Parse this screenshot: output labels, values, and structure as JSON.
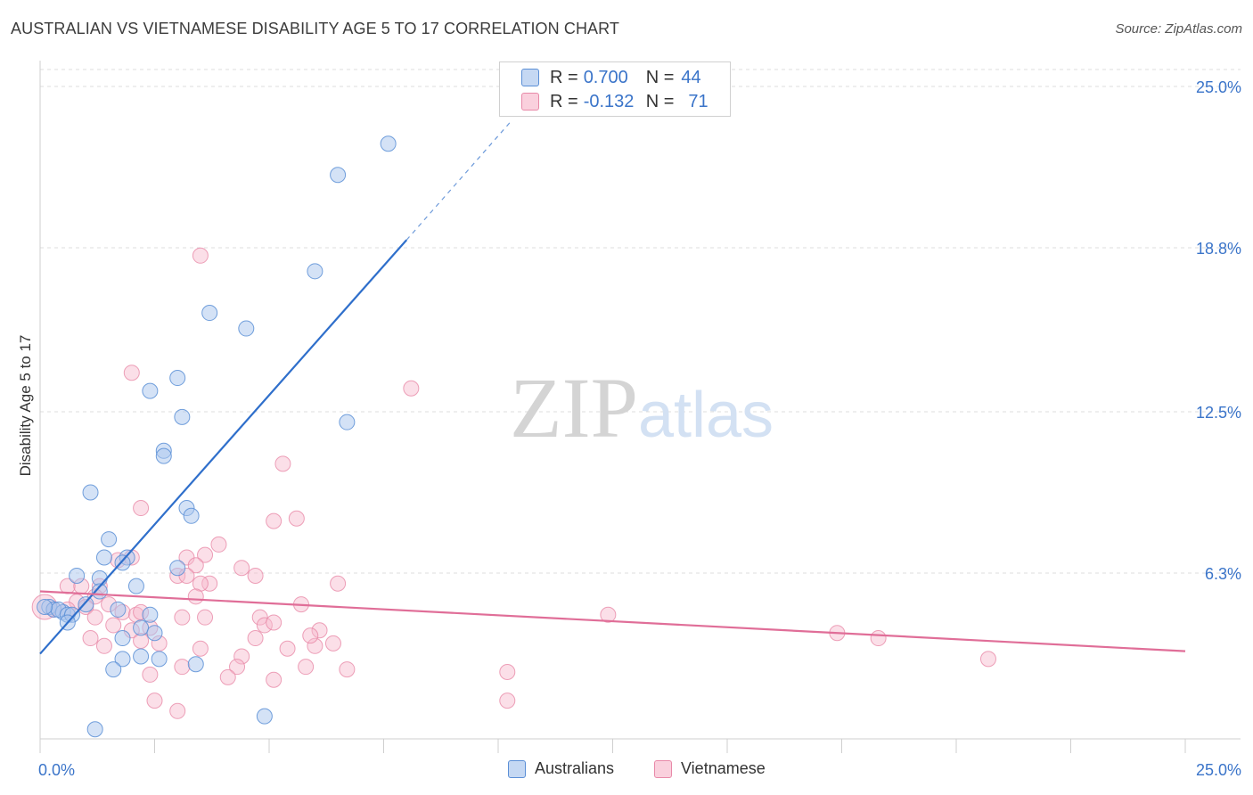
{
  "header": {
    "title": "AUSTRALIAN VS VIETNAMESE DISABILITY AGE 5 TO 17 CORRELATION CHART",
    "source": "Source: ZipAtlas.com"
  },
  "legend": {
    "rows": [
      {
        "r_label": "R =",
        "r_value": "0.700",
        "n_label": "N =",
        "n_value": "44"
      },
      {
        "r_label": "R =",
        "r_value": "-0.132",
        "n_label": "N =",
        "n_value": "71"
      }
    ]
  },
  "bottom_legend": [
    "Australians",
    "Vietnamese"
  ],
  "colors": {
    "australians_fill": "#a9c6ee",
    "australians_stroke": "#5b8fd6",
    "australians_line": "#2f6fcb",
    "vietnamese_fill": "#f6b9cc",
    "vietnamese_stroke": "#e889a8",
    "vietnamese_line": "#e06e98",
    "tick_label": "#3a74c9",
    "grid": "#dcdcdc"
  },
  "chart_data": {
    "type": "scatter",
    "title": "AUSTRALIAN VS VIETNAMESE DISABILITY AGE 5 TO 17 CORRELATION CHART",
    "xlabel": "",
    "ylabel": "Disability Age 5 to 17",
    "xlim": [
      0,
      25
    ],
    "ylim": [
      0,
      25
    ],
    "x_tick_labels": [
      "0.0%",
      "25.0%"
    ],
    "y_ticks": [
      6.3,
      12.5,
      18.8,
      25.0
    ],
    "y_tick_labels": [
      "6.3%",
      "12.5%",
      "18.8%",
      "25.0%"
    ],
    "watermark": "ZIPatlas",
    "series": [
      {
        "name": "Australians",
        "r": 0.7,
        "n": 44,
        "trend": {
          "x0": 0,
          "y0": 3.2,
          "x1": 8.0,
          "y1": 19.1,
          "dash_to_x": 10.3,
          "dash_to_y": 23.7
        },
        "points": [
          [
            7.6,
            22.8
          ],
          [
            6.5,
            21.6
          ],
          [
            6.0,
            17.9
          ],
          [
            3.7,
            16.3
          ],
          [
            4.5,
            15.7
          ],
          [
            3.0,
            13.8
          ],
          [
            2.4,
            13.3
          ],
          [
            3.1,
            12.3
          ],
          [
            6.7,
            12.1
          ],
          [
            2.7,
            11.0
          ],
          [
            2.7,
            10.8
          ],
          [
            1.1,
            9.4
          ],
          [
            3.2,
            8.8
          ],
          [
            3.3,
            8.5
          ],
          [
            1.5,
            7.6
          ],
          [
            1.4,
            6.9
          ],
          [
            1.9,
            6.9
          ],
          [
            1.8,
            6.7
          ],
          [
            3.0,
            6.5
          ],
          [
            0.8,
            6.2
          ],
          [
            1.3,
            6.1
          ],
          [
            2.1,
            5.8
          ],
          [
            1.3,
            5.6
          ],
          [
            1.0,
            5.1
          ],
          [
            0.2,
            5.0
          ],
          [
            0.3,
            4.9
          ],
          [
            0.5,
            4.8
          ],
          [
            0.4,
            4.9
          ],
          [
            0.6,
            4.7
          ],
          [
            0.1,
            5.0
          ],
          [
            1.7,
            4.9
          ],
          [
            2.4,
            4.7
          ],
          [
            0.7,
            4.7
          ],
          [
            0.6,
            4.4
          ],
          [
            2.2,
            4.2
          ],
          [
            2.5,
            4.0
          ],
          [
            1.8,
            3.8
          ],
          [
            2.2,
            3.1
          ],
          [
            2.6,
            3.0
          ],
          [
            1.8,
            3.0
          ],
          [
            3.4,
            2.8
          ],
          [
            1.6,
            2.6
          ],
          [
            4.9,
            0.8
          ],
          [
            1.2,
            0.3
          ]
        ]
      },
      {
        "name": "Vietnamese",
        "r": -0.132,
        "n": 71,
        "trend": {
          "x0": 0,
          "y0": 5.6,
          "x1": 25,
          "y1": 3.3
        },
        "points": [
          [
            3.5,
            18.5
          ],
          [
            2.0,
            14.0
          ],
          [
            8.1,
            13.4
          ],
          [
            5.3,
            10.5
          ],
          [
            2.2,
            8.8
          ],
          [
            5.1,
            8.3
          ],
          [
            5.6,
            8.4
          ],
          [
            3.9,
            7.4
          ],
          [
            3.6,
            7.0
          ],
          [
            4.4,
            6.5
          ],
          [
            3.2,
            6.9
          ],
          [
            3.4,
            6.6
          ],
          [
            1.7,
            6.8
          ],
          [
            2.0,
            6.9
          ],
          [
            3.0,
            6.2
          ],
          [
            3.2,
            6.2
          ],
          [
            3.7,
            5.9
          ],
          [
            4.7,
            6.2
          ],
          [
            1.3,
            5.8
          ],
          [
            3.5,
            5.9
          ],
          [
            6.5,
            5.9
          ],
          [
            0.6,
            5.8
          ],
          [
            0.9,
            5.8
          ],
          [
            1.2,
            5.4
          ],
          [
            3.4,
            5.4
          ],
          [
            5.7,
            5.1
          ],
          [
            0.8,
            5.2
          ],
          [
            1.0,
            5.0
          ],
          [
            1.5,
            5.1
          ],
          [
            1.8,
            4.8
          ],
          [
            2.1,
            4.7
          ],
          [
            2.2,
            4.8
          ],
          [
            4.8,
            4.6
          ],
          [
            3.1,
            4.6
          ],
          [
            3.6,
            4.6
          ],
          [
            12.4,
            4.7
          ],
          [
            0.3,
            4.9
          ],
          [
            0.6,
            4.9
          ],
          [
            1.2,
            4.6
          ],
          [
            1.6,
            4.3
          ],
          [
            2.0,
            4.1
          ],
          [
            2.4,
            4.2
          ],
          [
            4.9,
            4.3
          ],
          [
            5.1,
            4.4
          ],
          [
            6.1,
            4.1
          ],
          [
            17.4,
            4.0
          ],
          [
            18.3,
            3.8
          ],
          [
            1.1,
            3.8
          ],
          [
            1.4,
            3.5
          ],
          [
            2.2,
            3.7
          ],
          [
            2.6,
            3.6
          ],
          [
            3.5,
            3.4
          ],
          [
            4.4,
            3.1
          ],
          [
            5.4,
            3.4
          ],
          [
            6.4,
            3.6
          ],
          [
            6.0,
            3.5
          ],
          [
            5.9,
            3.9
          ],
          [
            4.7,
            3.8
          ],
          [
            20.7,
            3.0
          ],
          [
            3.1,
            2.7
          ],
          [
            4.3,
            2.7
          ],
          [
            5.8,
            2.7
          ],
          [
            6.7,
            2.6
          ],
          [
            2.4,
            2.4
          ],
          [
            4.1,
            2.3
          ],
          [
            5.1,
            2.2
          ],
          [
            10.2,
            2.5
          ],
          [
            2.5,
            1.4
          ],
          [
            3.0,
            1.0
          ],
          [
            10.2,
            1.4
          ],
          [
            0.1,
            5.0
          ]
        ]
      }
    ]
  }
}
